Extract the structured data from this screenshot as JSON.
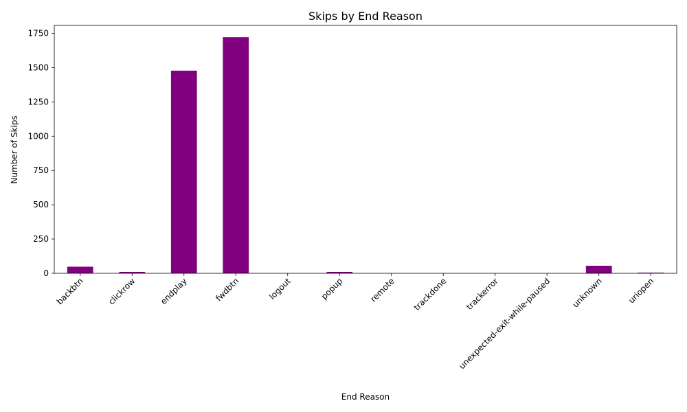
{
  "chart_data": {
    "type": "bar",
    "title": "Skips by End Reason",
    "xlabel": "End Reason",
    "ylabel": "Number of Skips",
    "categories": [
      "backbtn",
      "clickrow",
      "endplay",
      "fwdbtn",
      "logout",
      "popup",
      "remote",
      "trackdone",
      "trackerror",
      "unexpected-exit-while-paused",
      "unknown",
      "uriopen"
    ],
    "values": [
      48,
      10,
      1478,
      1722,
      0,
      10,
      0,
      0,
      0,
      0,
      55,
      5
    ],
    "ylim": [
      0,
      1808
    ],
    "yticks": [
      0,
      250,
      500,
      750,
      1000,
      1250,
      1500,
      1750
    ],
    "bar_color": "#800080",
    "grid": false,
    "legend": "none"
  }
}
